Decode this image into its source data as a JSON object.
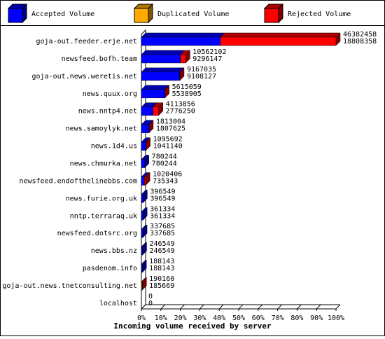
{
  "chart_data": {
    "type": "bar3d_horizontal",
    "x_label": "Incoming volume received by server",
    "categories": [
      "goja-out.feeder.erje.net",
      "newsfeed.bofh.team",
      "goja-out.news.weretis.net",
      "news.quux.org",
      "news.nntp4.net",
      "news.samoylyk.net",
      "news.1d4.us",
      "news.chmurka.net",
      "newsfeed.endofthelinebbs.com",
      "news.furie.org.uk",
      "nntp.terraraq.uk",
      "newsfeed.dotsrc.org",
      "news.bbs.nz",
      "pasdenom.info",
      "goja-out.news.tnetconsulting.net",
      "localhost"
    ],
    "label_top": [
      "46382458",
      "10562102",
      "9167035",
      "5615059",
      "4113856",
      "1813004",
      "1095692",
      "780244",
      "1020406",
      "396549",
      "361334",
      "337685",
      "246549",
      "188143",
      "190160",
      "0"
    ],
    "label_bottom": [
      "18808358",
      "9296147",
      "9108127",
      "5538905",
      "2776250",
      "1807625",
      "1041140",
      "780244",
      "735343",
      "396549",
      "361334",
      "337685",
      "246549",
      "188143",
      "185669",
      "0"
    ],
    "series": [
      {
        "name": "Accepted Volume",
        "color": "#0000ff",
        "values": [
          18808358,
          9296147,
          9108127,
          5538905,
          2776250,
          1807625,
          1041140,
          780244,
          735343,
          396549,
          361334,
          337685,
          246549,
          188143,
          0,
          0
        ]
      },
      {
        "name": "Duplicated Volume",
        "color": "#ffaa00",
        "values": [
          0,
          0,
          0,
          0,
          0,
          0,
          0,
          0,
          0,
          0,
          0,
          0,
          0,
          0,
          185669,
          0
        ]
      },
      {
        "name": "Rejected Volume",
        "color": "#ff0000",
        "values": [
          27574100,
          1265955,
          58908,
          76154,
          1337606,
          5379,
          54552,
          0,
          285063,
          0,
          0,
          0,
          0,
          0,
          4491,
          0
        ]
      }
    ],
    "xlim": [
      0,
      46382458
    ],
    "xticks": [
      {
        "value": 0,
        "label": "0%"
      },
      {
        "value": 4638245.8,
        "label": "10%"
      },
      {
        "value": 9276491.6,
        "label": "20%"
      },
      {
        "value": 13914737.4,
        "label": "30%"
      },
      {
        "value": 18552983.2,
        "label": "40%"
      },
      {
        "value": 23191229,
        "label": "50%"
      },
      {
        "value": 27829474.8,
        "label": "60%"
      },
      {
        "value": 32467720.6,
        "label": "70%"
      },
      {
        "value": 37105966.4,
        "label": "80%"
      },
      {
        "value": 41744212.2,
        "label": "90%"
      },
      {
        "value": 46382458,
        "label": "100%"
      }
    ]
  }
}
